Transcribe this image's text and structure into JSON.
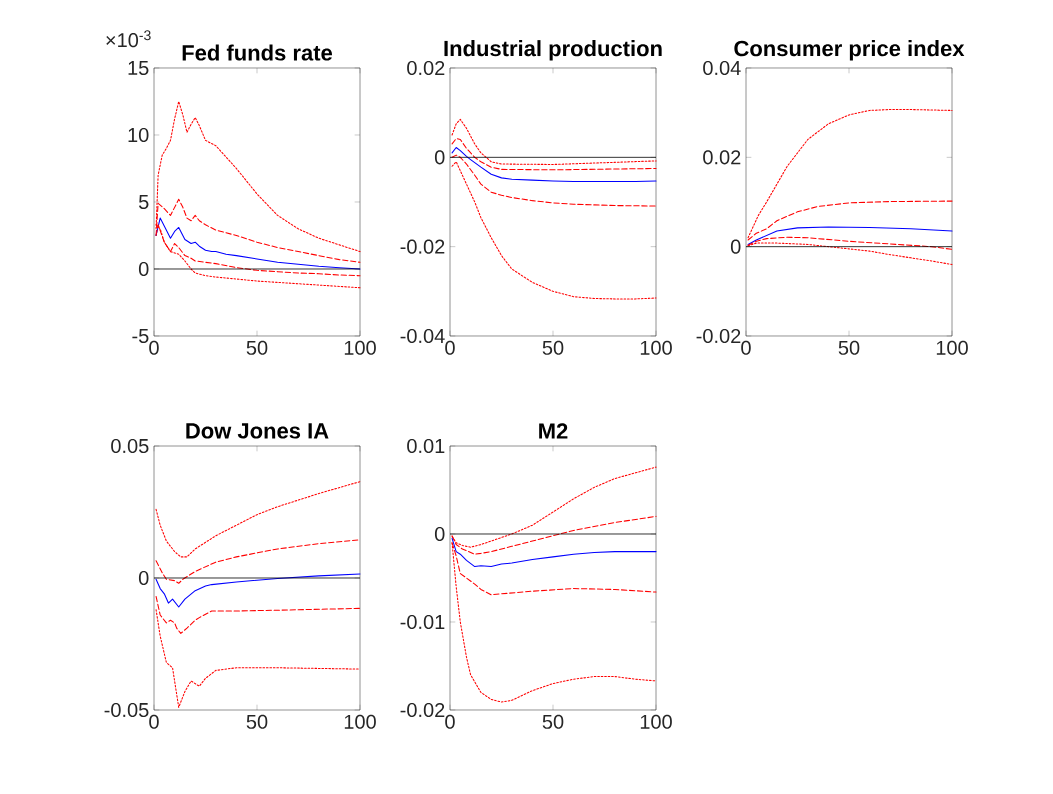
{
  "chart_data": [
    {
      "type": "line",
      "title": "Fed funds rate",
      "annotations": [
        "×10$^{-3}$"
      ],
      "xlim": [
        0,
        100
      ],
      "ylim": [
        -5,
        15
      ],
      "xticks": [
        0,
        50,
        100
      ],
      "yticks": [
        -5,
        0,
        5,
        10,
        15
      ],
      "ref_lines": [
        {
          "axis": "y",
          "value": 0,
          "color": "#000000"
        }
      ],
      "series": [
        {
          "color": "#ff0000",
          "line_style": "dotted",
          "x": [
            1,
            2,
            4,
            6,
            8,
            10,
            12,
            14,
            16,
            18,
            20,
            22,
            25,
            30,
            40,
            50,
            60,
            70,
            80,
            90,
            100
          ],
          "values": [
            3,
            7,
            8.5,
            9,
            9.6,
            11.2,
            12.5,
            11.5,
            10.2,
            10.8,
            11.3,
            10.7,
            9.6,
            9.2,
            7.5,
            5.6,
            4.0,
            3.0,
            2.3,
            1.8,
            1.3
          ]
        },
        {
          "color": "#ff0000",
          "line_style": "dashed",
          "x": [
            1,
            2,
            5,
            8,
            10,
            12,
            14,
            16,
            18,
            20,
            22,
            25,
            30,
            35,
            40,
            50,
            60,
            70,
            80,
            90,
            100
          ],
          "values": [
            2.5,
            4.9,
            4.5,
            4.0,
            4.6,
            5.2,
            4.6,
            3.8,
            3.6,
            4.0,
            3.6,
            3.3,
            2.9,
            2.7,
            2.5,
            2.0,
            1.6,
            1.3,
            1.0,
            0.7,
            0.5
          ]
        },
        {
          "color": "#0000ff",
          "line_style": "solid",
          "x": [
            1,
            3,
            5,
            8,
            10,
            12,
            15,
            18,
            20,
            22,
            25,
            28,
            30,
            35,
            40,
            50,
            60,
            70,
            80,
            90,
            100
          ],
          "values": [
            2.5,
            3.8,
            3.2,
            2.3,
            2.8,
            3.1,
            2.2,
            1.9,
            2.0,
            1.7,
            1.4,
            1.3,
            1.3,
            1.1,
            1.0,
            0.75,
            0.5,
            0.35,
            0.2,
            0.1,
            0.0
          ]
        },
        {
          "color": "#ff0000",
          "line_style": "dashed",
          "x": [
            1,
            2,
            5,
            8,
            10,
            12,
            15,
            18,
            20,
            25,
            30,
            40,
            50,
            60,
            70,
            80,
            90,
            100
          ],
          "values": [
            2.5,
            3.3,
            2.0,
            1.3,
            1.9,
            1.6,
            1.0,
            0.8,
            0.6,
            0.5,
            0.4,
            0.1,
            -0.1,
            -0.2,
            -0.3,
            -0.35,
            -0.45,
            -0.5
          ]
        },
        {
          "color": "#ff0000",
          "line_style": "dotted",
          "x": [
            1,
            3,
            5,
            8,
            10,
            12,
            15,
            18,
            20,
            25,
            30,
            40,
            50,
            60,
            70,
            80,
            90,
            100
          ],
          "values": [
            3.3,
            3.0,
            2.0,
            1.3,
            1.2,
            1.1,
            0.6,
            0.0,
            -0.3,
            -0.5,
            -0.6,
            -0.75,
            -0.9,
            -1.0,
            -1.1,
            -1.2,
            -1.3,
            -1.4
          ]
        }
      ]
    },
    {
      "type": "line",
      "title": "Industrial production",
      "xlim": [
        0,
        100
      ],
      "ylim": [
        -0.04,
        0.02
      ],
      "xticks": [
        0,
        50,
        100
      ],
      "yticks": [
        -0.04,
        -0.02,
        0,
        0.02
      ],
      "ref_lines": [
        {
          "axis": "y",
          "value": 0,
          "color": "#000000"
        }
      ],
      "series": [
        {
          "color": "#ff0000",
          "line_style": "dotted",
          "x": [
            1,
            3,
            5,
            8,
            12,
            15,
            20,
            25,
            50,
            100
          ],
          "values": [
            0.005,
            0.0075,
            0.0085,
            0.0065,
            0.003,
            0.001,
            -0.001,
            -0.0015,
            -0.0016,
            -0.0008
          ]
        },
        {
          "color": "#ff0000",
          "line_style": "dashed",
          "x": [
            1,
            3,
            5,
            8,
            12,
            15,
            20,
            25,
            50,
            100
          ],
          "values": [
            0.003,
            0.0042,
            0.004,
            0.002,
            0.0,
            -0.001,
            -0.0022,
            -0.0027,
            -0.0028,
            -0.0025
          ]
        },
        {
          "color": "#0000ff",
          "line_style": "solid",
          "x": [
            1,
            3,
            5,
            8,
            10,
            15,
            20,
            25,
            30,
            40,
            50,
            60,
            70,
            80,
            90,
            100
          ],
          "values": [
            0.001,
            0.0022,
            0.0015,
            0.0002,
            -0.0005,
            -0.0022,
            -0.0038,
            -0.0046,
            -0.0049,
            -0.0051,
            -0.0053,
            -0.0054,
            -0.0054,
            -0.0054,
            -0.0054,
            -0.0053
          ]
        },
        {
          "color": "#ff0000",
          "line_style": "dashed",
          "x": [
            1,
            3,
            5,
            8,
            12,
            15,
            20,
            25,
            30,
            40,
            50,
            60,
            80,
            100
          ],
          "values": [
            0.0,
            0.0005,
            0.0,
            -0.0015,
            -0.004,
            -0.006,
            -0.0078,
            -0.0085,
            -0.009,
            -0.0097,
            -0.0102,
            -0.0105,
            -0.0108,
            -0.0109
          ]
        },
        {
          "color": "#ff0000",
          "line_style": "dotted",
          "x": [
            1,
            3,
            5,
            8,
            12,
            15,
            20,
            25,
            30,
            40,
            50,
            60,
            70,
            80,
            90,
            100
          ],
          "values": [
            -0.002,
            -0.001,
            -0.003,
            -0.006,
            -0.01,
            -0.0135,
            -0.018,
            -0.022,
            -0.025,
            -0.028,
            -0.03,
            -0.0312,
            -0.0316,
            -0.0317,
            -0.0317,
            -0.0315
          ]
        }
      ]
    },
    {
      "type": "line",
      "title": "Consumer price index",
      "xlim": [
        0,
        100
      ],
      "ylim": [
        -0.02,
        0.04
      ],
      "xticks": [
        0,
        50,
        100
      ],
      "yticks": [
        -0.02,
        0,
        0.02,
        0.04
      ],
      "ref_lines": [
        {
          "axis": "y",
          "value": 0,
          "color": "#000000"
        }
      ],
      "series": [
        {
          "color": "#ff0000",
          "line_style": "dotted",
          "x": [
            1,
            3,
            6,
            10,
            15,
            20,
            25,
            30,
            40,
            50,
            60,
            70,
            80,
            100
          ],
          "values": [
            0.002,
            0.004,
            0.007,
            0.01,
            0.014,
            0.018,
            0.021,
            0.024,
            0.0275,
            0.0295,
            0.0305,
            0.0307,
            0.0307,
            0.0305
          ]
        },
        {
          "color": "#ff0000",
          "line_style": "dashed",
          "x": [
            1,
            5,
            10,
            15,
            25,
            35,
            50,
            70,
            100
          ],
          "values": [
            0.0015,
            0.003,
            0.004,
            0.0058,
            0.0078,
            0.009,
            0.0098,
            0.0101,
            0.0102
          ]
        },
        {
          "color": "#0000ff",
          "line_style": "solid",
          "x": [
            1,
            5,
            15,
            25,
            40,
            60,
            80,
            100
          ],
          "values": [
            0.0005,
            0.0015,
            0.0035,
            0.0042,
            0.0044,
            0.0043,
            0.004,
            0.0035
          ]
        },
        {
          "color": "#ff0000",
          "line_style": "dashed",
          "x": [
            1,
            5,
            10,
            20,
            30,
            50,
            70,
            90,
            100
          ],
          "values": [
            0.0003,
            0.0012,
            0.0018,
            0.0021,
            0.002,
            0.0012,
            0.0006,
            0.0,
            -0.0006
          ]
        },
        {
          "color": "#ff0000",
          "line_style": "dotted",
          "x": [
            1,
            5,
            15,
            30,
            40,
            50,
            60,
            70,
            80,
            90,
            100
          ],
          "values": [
            0.0002,
            0.0008,
            0.0008,
            0.0005,
            0.0,
            -0.0005,
            -0.001,
            -0.0018,
            -0.0025,
            -0.0032,
            -0.004
          ]
        }
      ]
    },
    {
      "type": "line",
      "title": "Dow Jones IA",
      "xlim": [
        0,
        100
      ],
      "ylim": [
        -0.05,
        0.05
      ],
      "xticks": [
        0,
        50,
        100
      ],
      "yticks": [
        -0.05,
        0,
        0.05
      ],
      "ref_lines": [
        {
          "axis": "y",
          "value": 0,
          "color": "#000000"
        }
      ],
      "series": [
        {
          "color": "#ff0000",
          "line_style": "dotted",
          "x": [
            1,
            3,
            6,
            10,
            13,
            16,
            20,
            30,
            40,
            50,
            60,
            80,
            100
          ],
          "values": [
            0.026,
            0.02,
            0.014,
            0.01,
            0.008,
            0.008,
            0.011,
            0.016,
            0.02,
            0.024,
            0.027,
            0.032,
            0.0365
          ]
        },
        {
          "color": "#ff0000",
          "line_style": "dashed",
          "x": [
            1,
            4,
            6,
            10,
            12,
            14,
            20,
            30,
            40,
            60,
            80,
            100
          ],
          "values": [
            0.0065,
            0.002,
            -0.0005,
            -0.001,
            -0.002,
            -0.0005,
            0.0025,
            0.006,
            0.008,
            0.011,
            0.013,
            0.0145
          ]
        },
        {
          "color": "#0000ff",
          "line_style": "solid",
          "x": [
            1,
            3,
            5,
            7,
            9,
            12,
            15,
            20,
            25,
            28,
            40,
            60,
            80,
            100
          ],
          "values": [
            -0.0005,
            -0.004,
            -0.006,
            -0.0095,
            -0.008,
            -0.011,
            -0.008,
            -0.0048,
            -0.003,
            -0.0025,
            -0.0015,
            -0.0002,
            0.0008,
            0.0015
          ]
        },
        {
          "color": "#ff0000",
          "line_style": "dashed",
          "x": [
            1,
            3,
            6,
            8,
            10,
            11,
            13,
            16,
            20,
            22,
            28,
            40,
            60,
            100
          ],
          "values": [
            -0.007,
            -0.014,
            -0.017,
            -0.016,
            -0.017,
            -0.019,
            -0.021,
            -0.019,
            -0.016,
            -0.015,
            -0.0125,
            -0.0125,
            -0.0122,
            -0.0115
          ]
        },
        {
          "color": "#ff0000",
          "line_style": "dotted",
          "x": [
            1,
            3,
            6,
            9,
            12,
            15,
            18,
            22,
            25,
            30,
            40,
            60,
            100
          ],
          "values": [
            -0.012,
            -0.022,
            -0.032,
            -0.034,
            -0.049,
            -0.043,
            -0.039,
            -0.041,
            -0.038,
            -0.035,
            -0.034,
            -0.034,
            -0.0345
          ]
        }
      ]
    },
    {
      "type": "line",
      "title": "M2",
      "xlim": [
        0,
        100
      ],
      "ylim": [
        -0.02,
        0.01
      ],
      "xticks": [
        0,
        50,
        100
      ],
      "yticks": [
        -0.02,
        -0.01,
        0,
        0.01
      ],
      "ref_lines": [
        {
          "axis": "y",
          "value": 0,
          "color": "#000000"
        }
      ],
      "series": [
        {
          "color": "#ff0000",
          "line_style": "dotted",
          "x": [
            1,
            3,
            6,
            10,
            15,
            20,
            30,
            40,
            50,
            60,
            70,
            80,
            100
          ],
          "values": [
            -0.0003,
            -0.001,
            -0.0013,
            -0.0015,
            -0.0012,
            -0.0008,
            0.0,
            0.001,
            0.0025,
            0.004,
            0.0053,
            0.0063,
            0.0076
          ]
        },
        {
          "color": "#ff0000",
          "line_style": "dashed",
          "x": [
            1,
            3,
            6,
            12,
            15,
            20,
            30,
            40,
            50,
            60,
            80,
            100
          ],
          "values": [
            -0.0002,
            -0.0012,
            -0.0017,
            -0.0023,
            -0.0022,
            -0.002,
            -0.0014,
            -0.0008,
            -0.0002,
            0.0004,
            0.0013,
            0.002
          ]
        },
        {
          "color": "#0000ff",
          "line_style": "solid",
          "x": [
            1,
            3,
            5,
            8,
            12,
            15,
            20,
            25,
            30,
            40,
            50,
            60,
            70,
            80,
            100
          ],
          "values": [
            -0.0005,
            -0.002,
            -0.0023,
            -0.003,
            -0.0037,
            -0.0036,
            -0.0037,
            -0.0034,
            -0.0033,
            -0.0029,
            -0.0026,
            -0.0023,
            -0.0021,
            -0.002,
            -0.002
          ]
        },
        {
          "color": "#ff0000",
          "line_style": "dashed",
          "x": [
            1,
            3,
            5,
            8,
            12,
            15,
            20,
            25,
            40,
            60,
            80,
            100
          ],
          "values": [
            -0.001,
            -0.0025,
            -0.0045,
            -0.005,
            -0.0057,
            -0.0063,
            -0.0069,
            -0.0068,
            -0.0065,
            -0.0062,
            -0.0063,
            -0.0066
          ]
        },
        {
          "color": "#ff0000",
          "line_style": "dotted",
          "x": [
            1,
            3,
            5,
            8,
            10,
            15,
            20,
            25,
            30,
            40,
            50,
            60,
            70,
            80,
            90,
            100
          ],
          "values": [
            -0.001,
            -0.006,
            -0.01,
            -0.014,
            -0.016,
            -0.018,
            -0.0188,
            -0.0191,
            -0.0189,
            -0.0178,
            -0.017,
            -0.0165,
            -0.0162,
            -0.0162,
            -0.0165,
            -0.0167
          ]
        }
      ]
    }
  ]
}
